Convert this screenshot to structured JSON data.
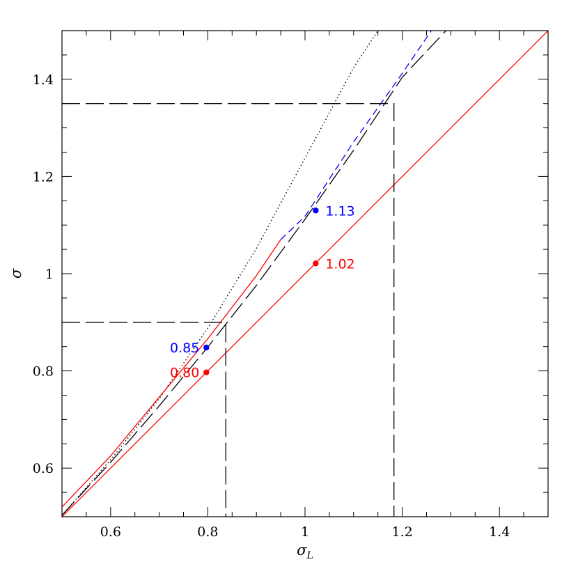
{
  "chart_data": {
    "type": "line",
    "xlabel": "σ",
    "xlabel_sub": "L",
    "ylabel": "σ",
    "xlim": [
      0.5,
      1.5
    ],
    "ylim": [
      0.5,
      1.5
    ],
    "x_ticks": [
      0.6,
      0.8,
      1,
      1.2,
      1.4
    ],
    "x_tick_labels": [
      "0.6",
      "0.8",
      "1",
      "1.2",
      "1.4"
    ],
    "y_ticks": [
      0.6,
      0.8,
      1,
      1.2,
      1.4
    ],
    "y_tick_labels": [
      "0.6",
      "0.8",
      "1",
      "1.2",
      "1.4"
    ],
    "grid": false,
    "series": [
      {
        "style": "solid",
        "color": "#ff0000",
        "x": [
          0.5,
          1.5
        ],
        "y": [
          0.5,
          1.5
        ]
      },
      {
        "style": "long-dash",
        "color": "#000000",
        "x": [
          0.5,
          0.6,
          0.7,
          0.8,
          0.9,
          1.0,
          1.1,
          1.2,
          1.29
        ],
        "y": [
          0.503,
          0.612,
          0.728,
          0.849,
          0.976,
          1.112,
          1.254,
          1.404,
          1.5
        ]
      },
      {
        "style": "short-dash",
        "color": "#0000ff",
        "x": [
          0.95,
          1.0,
          1.1,
          1.2,
          1.26
        ],
        "y": [
          1.07,
          1.118,
          1.271,
          1.412,
          1.5
        ]
      },
      {
        "style": "dotted",
        "color": "#000000",
        "x": [
          0.5,
          0.6,
          0.7,
          0.8,
          0.9,
          1.0,
          1.1,
          1.15
        ],
        "y": [
          0.503,
          0.617,
          0.743,
          0.888,
          1.052,
          1.238,
          1.424,
          1.5
        ]
      },
      {
        "style": "solid",
        "color": "#ff0000",
        "x": [
          0.5,
          0.6,
          0.7,
          0.8,
          0.9,
          0.95
        ],
        "y": [
          0.52,
          0.625,
          0.746,
          0.866,
          0.996,
          1.07
        ]
      }
    ],
    "reference_lines": [
      {
        "style": "long-dash",
        "color": "#000000",
        "x": [
          0.5,
          0.837,
          0.837
        ],
        "y": [
          0.9,
          0.9,
          0.5
        ]
      },
      {
        "style": "long-dash",
        "color": "#000000",
        "x": [
          0.5,
          1.183,
          1.183
        ],
        "y": [
          1.35,
          1.35,
          0.5
        ]
      }
    ],
    "points": [
      {
        "x": 0.797,
        "y": 0.848,
        "color": "#0000ff",
        "label": "0.85",
        "label_side": "left"
      },
      {
        "x": 0.797,
        "y": 0.797,
        "color": "#ff0000",
        "label": "0.80",
        "label_side": "left"
      },
      {
        "x": 1.022,
        "y": 1.13,
        "color": "#0000ff",
        "label": "1.13",
        "label_side": "right"
      },
      {
        "x": 1.022,
        "y": 1.021,
        "color": "#ff0000",
        "label": "1.02",
        "label_side": "right"
      }
    ]
  }
}
